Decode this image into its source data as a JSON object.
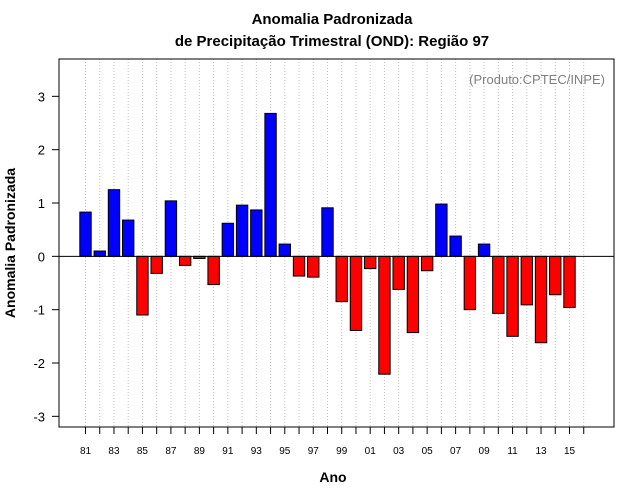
{
  "chart_data": {
    "type": "bar",
    "title_line1": "Anomalia Padronizada",
    "title_line2": "de Precipitação Trimestral (OND): Região 97",
    "source": "(Produto:CPTEC/INPE)",
    "xlabel": "Ano",
    "ylabel": "Anomalia Padronizada",
    "ylim": [
      -3.2,
      3.7
    ],
    "yticks": [
      -3,
      -2,
      -1,
      0,
      1,
      2,
      3
    ],
    "xtick_labels": [
      "81",
      "83",
      "85",
      "87",
      "89",
      "91",
      "93",
      "95",
      "97",
      "99",
      "01",
      "03",
      "05",
      "07",
      "09",
      "11",
      "13",
      "15"
    ],
    "categories": [
      "1981",
      "1982",
      "1983",
      "1984",
      "1985",
      "1986",
      "1987",
      "1988",
      "1989",
      "1990",
      "1991",
      "1992",
      "1993",
      "1994",
      "1995",
      "1996",
      "1997",
      "1998",
      "1999",
      "2000",
      "2001",
      "2002",
      "2003",
      "2004",
      "2005",
      "2006",
      "2007",
      "2008",
      "2009",
      "2010",
      "2011",
      "2012",
      "2013",
      "2014",
      "2015"
    ],
    "values": [
      0.83,
      0.1,
      1.25,
      0.68,
      -1.1,
      -0.32,
      1.04,
      -0.17,
      -0.04,
      -0.53,
      0.62,
      0.96,
      0.87,
      2.68,
      0.23,
      -0.37,
      -0.39,
      0.91,
      -0.85,
      -1.39,
      -0.23,
      -2.21,
      -0.62,
      -1.43,
      -0.27,
      0.98,
      0.38,
      -1.0,
      0.23,
      -1.07,
      -1.5,
      -0.91,
      -1.62,
      -0.72,
      -0.96
    ],
    "colors": {
      "positive": "#0000ff",
      "negative": "#ff0000"
    }
  }
}
